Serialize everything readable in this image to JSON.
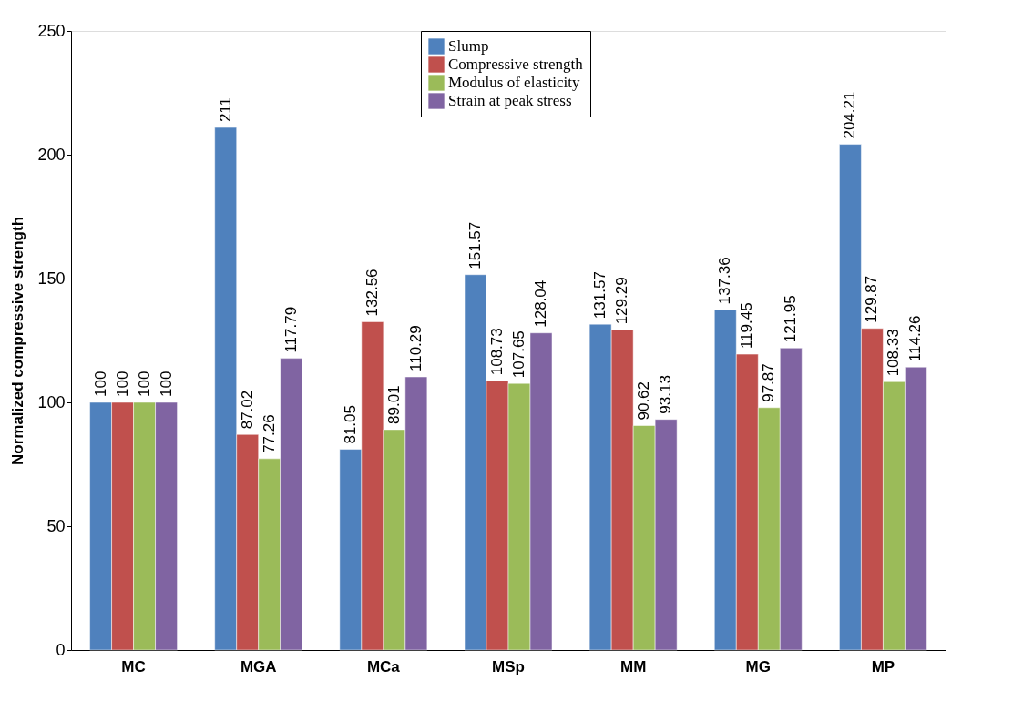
{
  "chart_data": {
    "type": "bar",
    "ylabel": "Normalized compressive strength",
    "categories": [
      "MC",
      "MGA",
      "MCa",
      "MSp",
      "MM",
      "MG",
      "MP"
    ],
    "series": [
      {
        "name": "Slump",
        "color": "#4f81bd",
        "values": [
          100,
          211,
          81.05,
          151.57,
          131.57,
          137.36,
          204.21
        ]
      },
      {
        "name": "Compressive strength",
        "color": "#c0504d",
        "values": [
          100,
          87.02,
          132.56,
          108.73,
          129.29,
          119.45,
          129.87
        ]
      },
      {
        "name": "Modulus of elasticity",
        "color": "#9bbb59",
        "values": [
          100,
          77.26,
          89.01,
          107.65,
          90.62,
          97.87,
          108.33
        ]
      },
      {
        "name": "Strain at peak stress",
        "color": "#8064a2",
        "values": [
          100,
          117.79,
          110.29,
          128.04,
          93.13,
          121.95,
          114.26
        ]
      }
    ],
    "ylim": [
      0,
      250
    ],
    "yticks": [
      0,
      50,
      100,
      150,
      200,
      250
    ],
    "grid": false,
    "legend": "top",
    "data_labels": true
  }
}
